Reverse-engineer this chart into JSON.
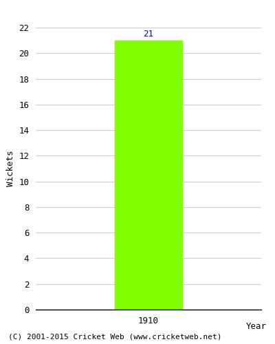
{
  "years": [
    1910
  ],
  "wickets": [
    21
  ],
  "bar_color": "#7fff00",
  "bar_width": 0.6,
  "xlabel": "Year",
  "ylabel": "Wickets",
  "ylim": [
    0,
    22
  ],
  "xlim": [
    1909.0,
    1911.0
  ],
  "yticks": [
    0,
    2,
    4,
    6,
    8,
    10,
    12,
    14,
    16,
    18,
    20,
    22
  ],
  "label_color": "#0000cc",
  "label_fontsize": 9,
  "axis_label_fontsize": 9,
  "tick_fontsize": 9,
  "footer_text": "(C) 2001-2015 Cricket Web (www.cricketweb.net)",
  "footer_fontsize": 8,
  "background_color": "#ffffff",
  "grid_color": "#cccccc"
}
